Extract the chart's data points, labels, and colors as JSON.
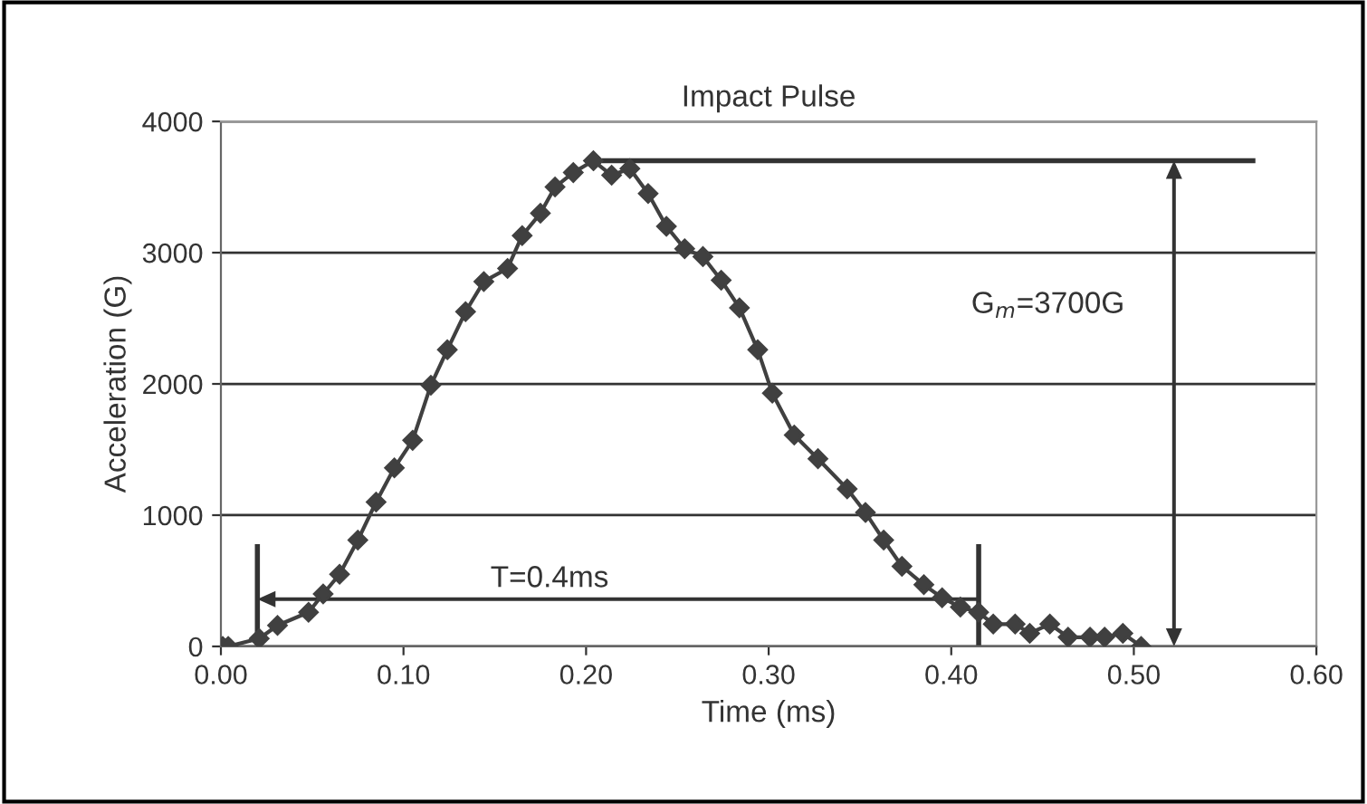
{
  "chart_data": {
    "type": "line",
    "title": "Impact Pulse",
    "xlabel": "Time (ms)",
    "ylabel": "Acceleration (G)",
    "x": [
      0.001,
      0.004,
      0.021,
      0.031,
      0.048,
      0.056,
      0.065,
      0.075,
      0.085,
      0.095,
      0.105,
      0.115,
      0.124,
      0.134,
      0.144,
      0.157,
      0.165,
      0.175,
      0.183,
      0.193,
      0.204,
      0.214,
      0.224,
      0.234,
      0.244,
      0.254,
      0.264,
      0.274,
      0.284,
      0.294,
      0.302,
      0.314,
      0.327,
      0.343,
      0.353,
      0.363,
      0.373,
      0.385,
      0.395,
      0.405,
      0.415,
      0.423,
      0.435,
      0.443,
      0.454,
      0.464,
      0.476,
      0.484,
      0.494,
      0.504
    ],
    "series": [
      {
        "color": "#404040",
        "values": [
          0,
          0,
          60,
          160,
          260,
          400,
          550,
          810,
          1100,
          1360,
          1570,
          1990,
          2260,
          2550,
          2780,
          2880,
          3130,
          3300,
          3500,
          3610,
          3700,
          3590,
          3640,
          3450,
          3200,
          3030,
          2970,
          2790,
          2580,
          2260,
          1930,
          1610,
          1430,
          1200,
          1020,
          810,
          610,
          470,
          370,
          300,
          260,
          170,
          170,
          100,
          170,
          70,
          70,
          70,
          100,
          0
        ]
      }
    ],
    "xlim": [
      0,
      0.6
    ],
    "xticks": [
      {
        "value": 0,
        "label": "0.00"
      },
      {
        "value": 0.1,
        "label": "0.10"
      },
      {
        "value": 0.2,
        "label": "0.20"
      },
      {
        "value": 0.3,
        "label": "0.30"
      },
      {
        "value": 0.4,
        "label": "0.40"
      },
      {
        "value": 0.5,
        "label": "0.50"
      },
      {
        "value": 0.6,
        "label": "0.60"
      }
    ],
    "ylim": [
      0,
      4000
    ],
    "yticks": [
      0,
      1000,
      2000,
      3000,
      4000
    ],
    "grid": "y",
    "marker": "diamond",
    "line_style": "solid",
    "ref_lines": [
      {
        "axis": "y",
        "value": 3700,
        "label": "G$_{m}$=3700G",
        "color": "#333333"
      }
    ],
    "annotations": [
      "T=0.4ms"
    ]
  }
}
